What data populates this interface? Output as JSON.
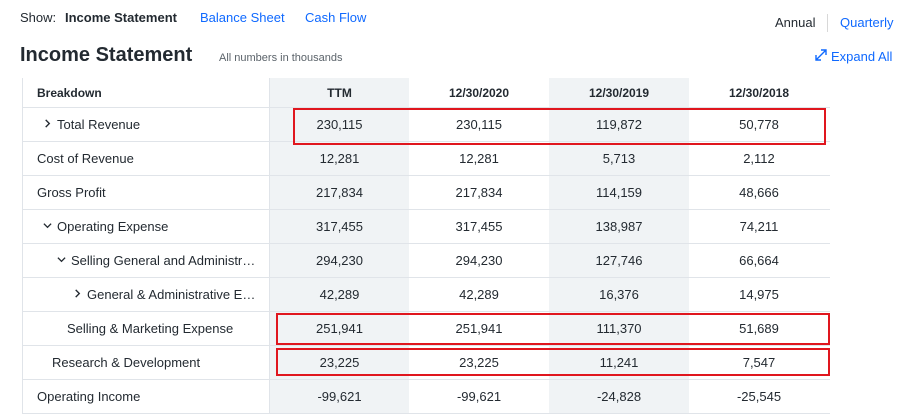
{
  "nav": {
    "show_label": "Show:",
    "tabs": [
      "Income Statement",
      "Balance Sheet",
      "Cash Flow"
    ],
    "periods": [
      "Annual",
      "Quarterly"
    ]
  },
  "header": {
    "title": "Income Statement",
    "subtitle": "All numbers in thousands",
    "expand_label": "Expand All"
  },
  "table": {
    "columns": [
      "Breakdown",
      "TTM",
      "12/30/2020",
      "12/30/2019",
      "12/30/2018"
    ],
    "rows": [
      {
        "label": "Total Revenue",
        "values": [
          "230,115",
          "230,115",
          "119,872",
          "50,778"
        ]
      },
      {
        "label": "Cost of Revenue",
        "values": [
          "12,281",
          "12,281",
          "5,713",
          "2,112"
        ]
      },
      {
        "label": "Gross Profit",
        "values": [
          "217,834",
          "217,834",
          "114,159",
          "48,666"
        ]
      },
      {
        "label": "Operating Expense",
        "values": [
          "317,455",
          "317,455",
          "138,987",
          "74,211"
        ]
      },
      {
        "label": "Selling General and Administr…",
        "values": [
          "294,230",
          "294,230",
          "127,746",
          "66,664"
        ]
      },
      {
        "label": "General & Administrative E…",
        "values": [
          "42,289",
          "42,289",
          "16,376",
          "14,975"
        ]
      },
      {
        "label": "Selling & Marketing Expense",
        "values": [
          "251,941",
          "251,941",
          "111,370",
          "51,689"
        ]
      },
      {
        "label": "Research & Development",
        "values": [
          "23,225",
          "23,225",
          "11,241",
          "7,547"
        ]
      },
      {
        "label": "Operating Income",
        "values": [
          "-99,621",
          "-99,621",
          "-24,828",
          "-25,545"
        ]
      }
    ]
  },
  "colors": {
    "link": "#0f69ff",
    "highlight": "#e0161e",
    "shaded_column": "#f0f3f5"
  }
}
